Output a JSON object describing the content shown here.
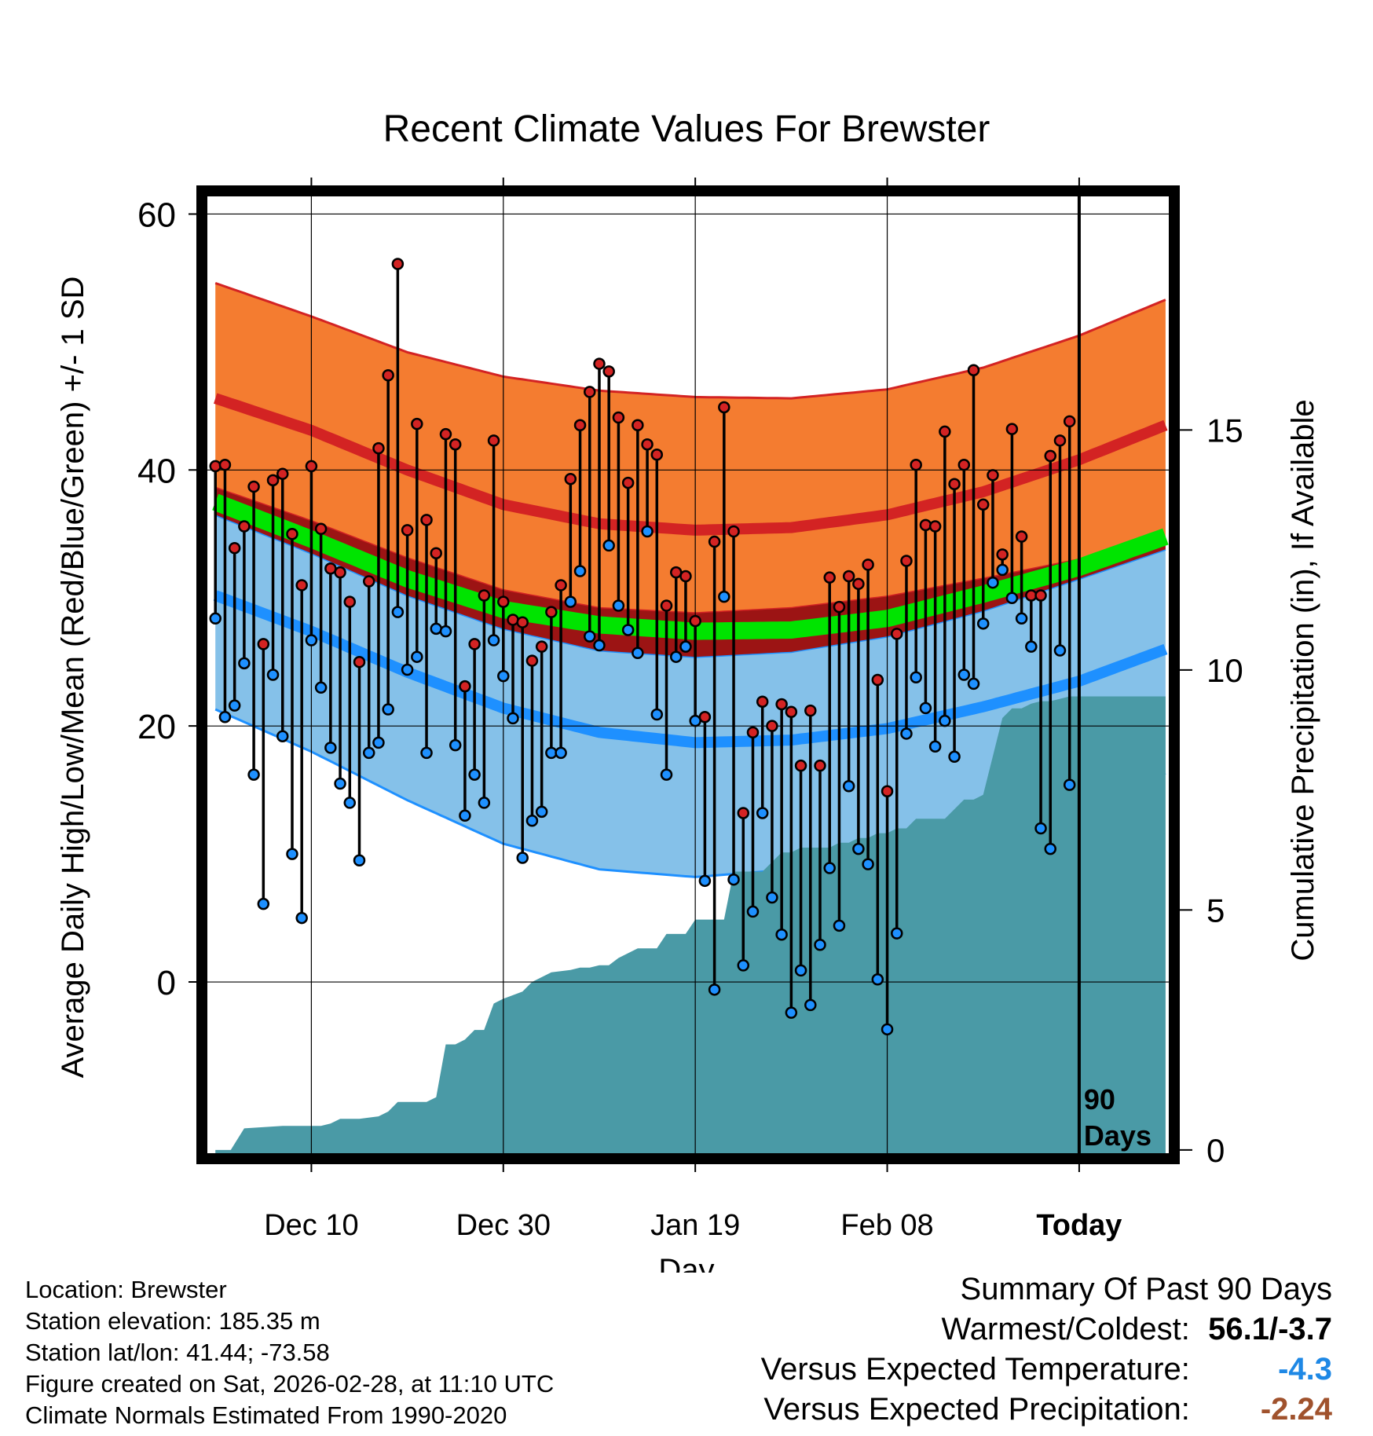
{
  "chart_data": {
    "type": "line",
    "title": "Recent Climate Values For Brewster",
    "xlabel": "Day",
    "ylabel": "Average Daily High/Low/Mean (Red/Blue/Green) +/- 1 SD",
    "y2label": "Cumulative Precipitation (in), If Available",
    "xlim": [
      -11,
      89.5
    ],
    "ylim": [
      -13.5,
      61.5
    ],
    "y2lim": [
      -0.1,
      19.9
    ],
    "x_ticks": [
      {
        "day": 0,
        "label": "Dec 10"
      },
      {
        "day": 20,
        "label": "Dec 30"
      },
      {
        "day": 40,
        "label": "Jan 19"
      },
      {
        "day": 60,
        "label": "Feb 08"
      },
      {
        "day": 80,
        "label": "Today"
      }
    ],
    "y_ticks": [
      0,
      20,
      40,
      60
    ],
    "y_minor_ticks": [
      -10,
      10,
      30,
      50
    ],
    "y2_ticks": [
      0,
      5,
      10,
      15
    ],
    "period_marker": {
      "day": 80,
      "label_line1": "90",
      "label_line2": "Days"
    },
    "normals": {
      "x": [
        -10,
        0,
        10,
        20,
        30,
        40,
        50,
        60,
        70,
        80,
        89
      ],
      "high_mean": [
        45.6,
        43.1,
        40.0,
        37.3,
        35.8,
        35.3,
        35.5,
        36.5,
        38.3,
        40.8,
        43.5
      ],
      "high_upper": [
        54.6,
        52.0,
        49.2,
        47.3,
        46.2,
        45.7,
        45.6,
        46.3,
        48.0,
        50.5,
        53.3
      ],
      "high_lower": [
        38.6,
        36.0,
        33.1,
        30.6,
        29.2,
        28.8,
        29.2,
        30.1,
        31.5,
        33.0,
        34.8
      ],
      "mean": [
        37.5,
        34.6,
        31.5,
        29.1,
        27.9,
        27.4,
        27.5,
        28.4,
        30.3,
        32.4,
        34.8
      ],
      "low_upper": [
        36.5,
        33.5,
        30.2,
        27.6,
        25.9,
        25.4,
        25.8,
        27.0,
        29.0,
        31.5,
        33.8
      ],
      "low_mean": [
        30.2,
        27.4,
        24.2,
        21.4,
        19.5,
        18.7,
        18.9,
        19.8,
        21.5,
        23.5,
        26.0
      ],
      "low_lower": [
        21.3,
        18.0,
        14.2,
        10.8,
        8.8,
        8.2,
        8.8,
        10.3,
        11.8,
        13.8,
        16.3
      ]
    },
    "series": [
      {
        "name": "Daily High",
        "color": "#d32323",
        "values": [
          40.3,
          40.4,
          33.9,
          35.6,
          38.7,
          26.4,
          39.2,
          39.7,
          35.0,
          31.0,
          40.3,
          35.4,
          32.3,
          32.0,
          29.7,
          25.0,
          31.3,
          41.7,
          47.4,
          56.1,
          35.3,
          43.6,
          36.1,
          33.5,
          42.8,
          42.0,
          23.1,
          26.4,
          30.2,
          42.3,
          29.7,
          28.3,
          28.1,
          25.1,
          26.2,
          28.9,
          31.0,
          39.3,
          43.5,
          46.1,
          48.3,
          47.7,
          44.1,
          39.0,
          43.5,
          42.0,
          41.2,
          29.4,
          32.0,
          31.7,
          28.2,
          20.7,
          34.4,
          44.9,
          35.2,
          13.2,
          19.5,
          21.9,
          20.0,
          21.7,
          21.1,
          16.9,
          21.2,
          16.9,
          31.6,
          29.3,
          31.7,
          31.1,
          32.6,
          23.6,
          14.9,
          27.2,
          32.9,
          40.4,
          35.7,
          35.6,
          43.0,
          38.9,
          40.4,
          47.8,
          37.3,
          39.6,
          33.4,
          43.2,
          34.8,
          30.2,
          30.2,
          41.1,
          42.3,
          43.8
        ]
      },
      {
        "name": "Daily Low",
        "color": "#1e90ff",
        "values": [
          28.4,
          20.7,
          21.6,
          24.9,
          16.2,
          6.1,
          24.0,
          19.2,
          10.0,
          5.0,
          26.7,
          23.0,
          18.3,
          15.5,
          14.0,
          9.5,
          17.9,
          18.7,
          21.3,
          28.9,
          24.4,
          25.4,
          17.9,
          27.6,
          27.4,
          18.5,
          13.0,
          16.2,
          14.0,
          26.7,
          23.9,
          20.6,
          9.7,
          12.6,
          13.3,
          17.9,
          17.9,
          29.7,
          32.1,
          27.0,
          26.3,
          34.1,
          29.4,
          27.5,
          25.7,
          35.2,
          20.9,
          16.2,
          25.4,
          26.2,
          20.4,
          7.9,
          -0.6,
          30.1,
          8.0,
          1.3,
          5.5,
          13.2,
          6.6,
          3.7,
          -2.4,
          0.9,
          -1.8,
          2.9,
          8.9,
          4.4,
          15.3,
          10.4,
          9.2,
          0.2,
          -3.7,
          3.8,
          19.4,
          23.8,
          21.4,
          18.4,
          20.4,
          17.6,
          24.0,
          23.3,
          28.0,
          31.2,
          32.2,
          30.0,
          28.4,
          26.2,
          12.0,
          10.4,
          25.9,
          15.4
        ]
      },
      {
        "name": "Cumulative Precipitation",
        "color": "#4a9aa6",
        "axis": "right",
        "x": [
          -10,
          -8.4,
          -7,
          -3,
          -2,
          1,
          2,
          3,
          5,
          7,
          8,
          9,
          10,
          11,
          12,
          13,
          14,
          15,
          16,
          17,
          18,
          19,
          20,
          22,
          23,
          25,
          27,
          28,
          29,
          30,
          31,
          32,
          34,
          35,
          36,
          37,
          38,
          39,
          40,
          41,
          42,
          43,
          44,
          45,
          46,
          47,
          49,
          50,
          51,
          53,
          54,
          55,
          56,
          57,
          58,
          59,
          60,
          61,
          62,
          63,
          66,
          68,
          69,
          70,
          72,
          73,
          74,
          75,
          76,
          77,
          78,
          79,
          89
        ],
        "values": [
          0,
          0,
          0.45,
          0.5,
          0.5,
          0.5,
          0.55,
          0.65,
          0.65,
          0.7,
          0.8,
          1.0,
          1.0,
          1.0,
          1.0,
          1.1,
          2.2,
          2.2,
          2.3,
          2.5,
          2.5,
          3.05,
          3.15,
          3.3,
          3.5,
          3.7,
          3.75,
          3.8,
          3.8,
          3.85,
          3.85,
          4.0,
          4.2,
          4.2,
          4.2,
          4.5,
          4.5,
          4.5,
          4.8,
          4.8,
          4.8,
          4.8,
          5.8,
          5.8,
          5.8,
          5.8,
          6.2,
          6.2,
          6.3,
          6.3,
          6.3,
          6.4,
          6.4,
          6.5,
          6.5,
          6.6,
          6.6,
          6.7,
          6.7,
          6.9,
          6.9,
          7.3,
          7.3,
          7.4,
          9.0,
          9.2,
          9.2,
          9.3,
          9.35,
          9.35,
          9.4,
          9.45,
          9.45
        ]
      }
    ]
  },
  "footer_left": {
    "location": "Location: Brewster",
    "elevation": "Station elevation: 185.35 m",
    "latlon": "Station lat/lon: 41.44; -73.58",
    "created": "Figure created on Sat, 2026-02-28, at 11:10 UTC",
    "normals_period": "Climate Normals Estimated From 1990-2020"
  },
  "summary": {
    "heading": "Summary Of Past 90 Days",
    "warmest_label": "Warmest/Coldest:",
    "warmest_value": "56.1/-3.7",
    "temp_label": "Versus Expected Temperature:",
    "temp_value": "-4.3",
    "temp_color": "#1e88e5",
    "precip_label": "Versus Expected Precipitation:",
    "precip_value": "-2.24",
    "precip_color": "#a0522d"
  }
}
